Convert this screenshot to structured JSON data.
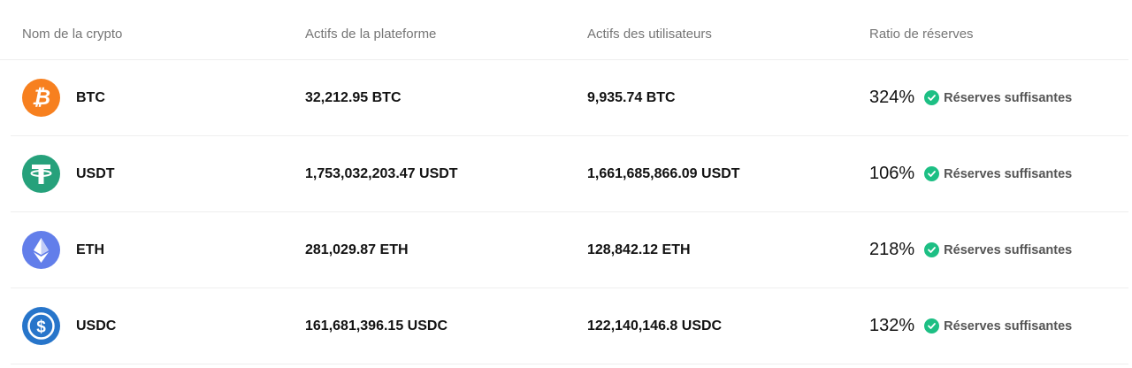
{
  "columns": [
    "Nom de la crypto",
    "Actifs de la plateforme",
    "Actifs des utilisateurs",
    "Ratio de réserves"
  ],
  "rows": [
    {
      "symbol": "BTC",
      "icon": "bitcoin-icon",
      "color": "#f7801f",
      "platform": "32,212.95 BTC",
      "users": "9,935.74 BTC",
      "ratio": "324%",
      "status": "Réserves suffisantes"
    },
    {
      "symbol": "USDT",
      "icon": "tether-icon",
      "color": "#26a17b",
      "platform": "1,753,032,203.47 USDT",
      "users": "1,661,685,866.09 USDT",
      "ratio": "106%",
      "status": "Réserves suffisantes"
    },
    {
      "symbol": "ETH",
      "icon": "ethereum-icon",
      "color": "#627eea",
      "platform": "281,029.87 ETH",
      "users": "128,842.12 ETH",
      "ratio": "218%",
      "status": "Réserves suffisantes"
    },
    {
      "symbol": "USDC",
      "icon": "usdc-icon",
      "color": "#2775ca",
      "platform": "161,681,396.15 USDC",
      "users": "122,140,146.8 USDC",
      "ratio": "132%",
      "status": "Réserves suffisantes"
    }
  ],
  "status_color": "#1dbf84"
}
